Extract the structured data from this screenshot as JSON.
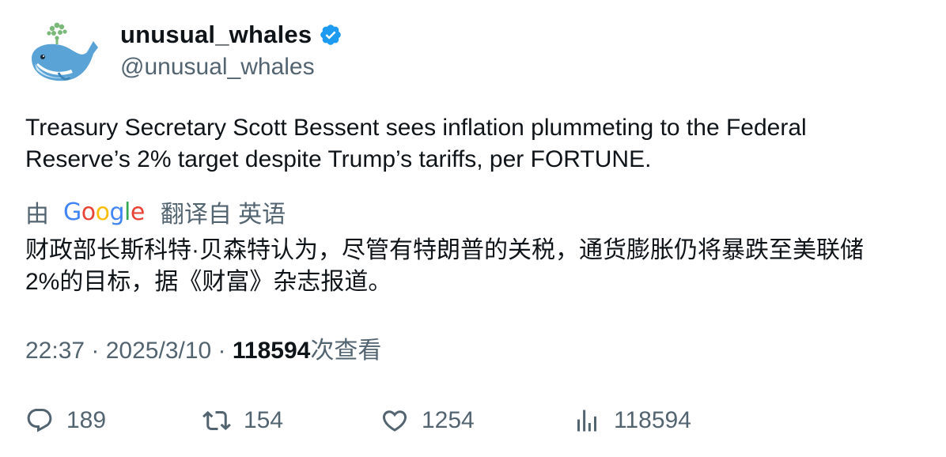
{
  "author": {
    "display_name": "unusual_whales",
    "handle": "@unusual_whales",
    "verified": true,
    "verified_color": "#1d9bf0",
    "avatar_icon": "whale-icon"
  },
  "tweet": {
    "text_line1": "Treasury Secretary Scott Bessent sees inflation plummeting to the Federal",
    "text_line2": "Reserve’s 2% target despite Trump’s tariffs, per FORTUNE."
  },
  "translation": {
    "by_label": "由",
    "provider": {
      "G": "G",
      "o1": "o",
      "o2": "o",
      "g": "g",
      "l": "l",
      "e": "e"
    },
    "translated_from_label": "翻译自 英语",
    "text_line1": "财政部长斯科特·贝森特认为，尽管有特朗普的关税，通货膨胀仍将暴跌至美联储",
    "text_line2": "2%的目标，据《财富》杂志报道。"
  },
  "meta": {
    "time": "22:37",
    "separator": " · ",
    "date": "2025/3/10",
    "views_count": "118594",
    "views_label": "次查看"
  },
  "actions": {
    "replies": "189",
    "retweets": "154",
    "likes": "1254",
    "views": "118594"
  },
  "colors": {
    "text_primary": "#0f1419",
    "text_secondary": "#536471",
    "accent": "#1d9bf0"
  }
}
